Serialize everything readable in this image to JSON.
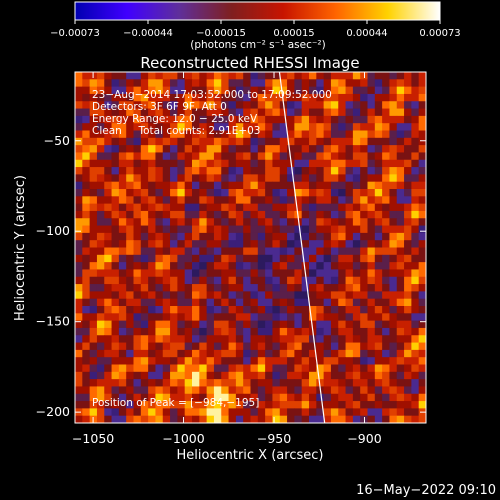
{
  "chart_data": {
    "type": "heatmap",
    "title": "Reconstructed RHESSI Image",
    "xlabel": "Heliocentric X (arcsec)",
    "ylabel": "Heliocentric Y (arcsec)",
    "xlim": [
      -1060,
      -866
    ],
    "ylim": [
      -206,
      -12
    ],
    "x_ticks": [
      -1050,
      -1000,
      -950,
      -900
    ],
    "y_ticks": [
      -50,
      -100,
      -150,
      -200
    ],
    "x_tick_labels": [
      "−1050",
      "−1000",
      "−950",
      "−900"
    ],
    "y_tick_labels": [
      "−50",
      "−100",
      "−150",
      "−200"
    ],
    "colorbar": {
      "range": [
        -0.00073,
        0.00073
      ],
      "tick_labels": [
        "−0.00073",
        "−0.00044",
        "−0.00015",
        "0.00015",
        "0.00044",
        "0.00073"
      ],
      "units": "(photons cm⁻² s⁻¹ asec⁻²)",
      "colors": [
        "#0000b0",
        "#4000ff",
        "#5f2f9a",
        "#7f1f1f",
        "#c81400",
        "#ff6400",
        "#ffd200",
        "#ffffff"
      ]
    },
    "grid": false,
    "annotations": {
      "time": "23−Aug−2014 17:03:52.000 to 17:09:52.000",
      "detectors": "Detectors: 3F 6F 9F, Att 0",
      "energy": "Energy Range: 12.0 − 25.0 keV",
      "clean": "Clean     Total counts: 2.91E+03",
      "peak": "Position of Peak = [−984,−195]"
    },
    "peak_position": [
      -984,
      -195
    ],
    "limb_line": [
      [
        -947,
        -12
      ],
      [
        -922,
        -206
      ]
    ]
  },
  "footer": {
    "timestamp": "16−May−2022 09:10"
  }
}
